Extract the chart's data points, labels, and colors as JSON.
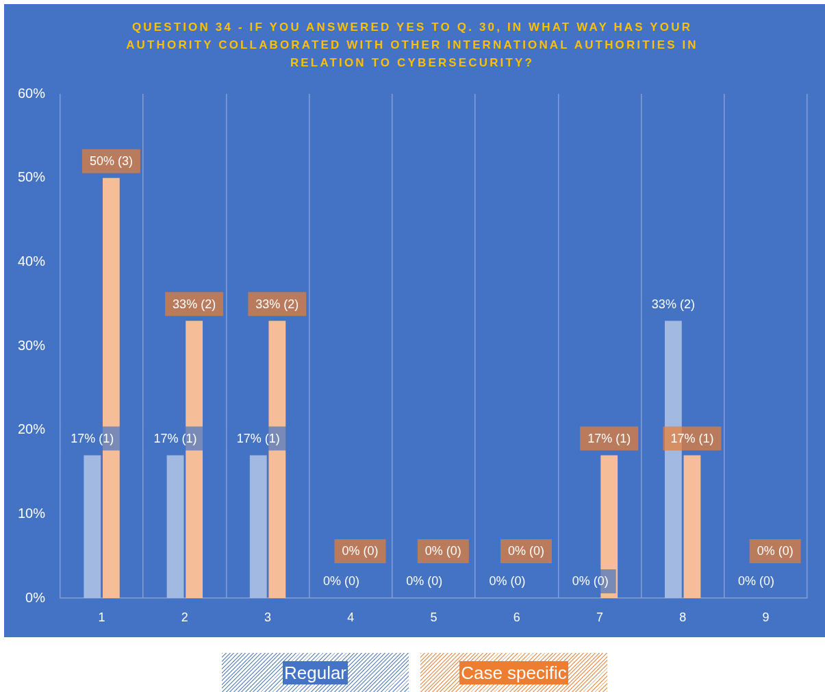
{
  "chart_data": {
    "type": "bar",
    "title": "QUESTION 34 - IF YOU ANSWERED YES TO Q. 30, IN WHAT WAY HAS YOUR AUTHORITY COLLABORATED WITH OTHER INTERNATIONAL AUTHORITIES IN RELATION TO CYBERSECURITY?",
    "categories": [
      "1",
      "2",
      "3",
      "4",
      "5",
      "6",
      "7",
      "8",
      "9"
    ],
    "series": [
      {
        "name": "Regular",
        "color": "#a2b9e2",
        "values": [
          17,
          17,
          17,
          0,
          0,
          0,
          0,
          33,
          0
        ],
        "value_labels": [
          "17% (1)",
          "17% (1)",
          "17% (1)",
          "0% (0)",
          "0% (0)",
          "0% (0)",
          "0% (0)",
          "33% (2)",
          "0% (0)"
        ]
      },
      {
        "name": "Case specific",
        "color": "#f6be98",
        "values": [
          50,
          33,
          33,
          0,
          0,
          0,
          17,
          17,
          0
        ],
        "value_labels": [
          "50% (3)",
          "33% (2)",
          "33% (2)",
          "0% (0)",
          "0% (0)",
          "0% (0)",
          "17% (1)",
          "17% (1)",
          "0% (0)"
        ]
      }
    ],
    "ylim": [
      0,
      60
    ],
    "yticks": [
      {
        "value": 0,
        "label": "0%"
      },
      {
        "value": 10,
        "label": "10%"
      },
      {
        "value": 20,
        "label": "20%"
      },
      {
        "value": 30,
        "label": "30%"
      },
      {
        "value": 40,
        "label": "40%"
      },
      {
        "value": 50,
        "label": "50%"
      },
      {
        "value": 60,
        "label": "60%"
      }
    ],
    "grid": "x",
    "legend": "bottom"
  }
}
